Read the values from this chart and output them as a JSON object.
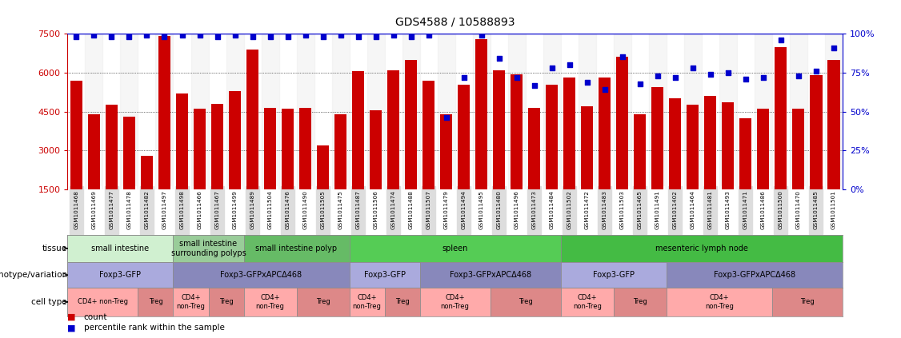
{
  "title": "GDS4588 / 10588893",
  "samples": [
    "GSM1011468",
    "GSM1011469",
    "GSM1011477",
    "GSM1011478",
    "GSM1011482",
    "GSM1011497",
    "GSM1011498",
    "GSM1011466",
    "GSM1011467",
    "GSM1011499",
    "GSM1011489",
    "GSM1011504",
    "GSM1011476",
    "GSM1011490",
    "GSM1011505",
    "GSM1011475",
    "GSM1011487",
    "GSM1011506",
    "GSM1011474",
    "GSM1011488",
    "GSM1011507",
    "GSM1011479",
    "GSM1011494",
    "GSM1011495",
    "GSM1011480",
    "GSM1011496",
    "GSM1011473",
    "GSM1011484",
    "GSM1011502",
    "GSM1011472",
    "GSM1011483",
    "GSM1011503",
    "GSM1011465",
    "GSM1011491",
    "GSM1011402",
    "GSM1011464",
    "GSM1011481",
    "GSM1011493",
    "GSM1011471",
    "GSM1011486",
    "GSM1011500",
    "GSM1011470",
    "GSM1011485",
    "GSM1011501"
  ],
  "counts": [
    5700,
    4400,
    4750,
    4300,
    2780,
    7430,
    5200,
    4600,
    4800,
    5300,
    6900,
    4650,
    4600,
    4650,
    3200,
    4400,
    6050,
    4550,
    6100,
    6500,
    5700,
    4400,
    5550,
    7300,
    6100,
    5950,
    4650,
    5550,
    5800,
    4700,
    5800,
    6600,
    4400,
    5450,
    5000,
    4750,
    5100,
    4850,
    4250,
    4600,
    7000,
    4600,
    5900,
    6500
  ],
  "percentile_vals": [
    98,
    99,
    98,
    98,
    99,
    98,
    99,
    99,
    98,
    99,
    98,
    98,
    98,
    99,
    98,
    99,
    98,
    98,
    99,
    98,
    99,
    46,
    72,
    99,
    84,
    72,
    67,
    78,
    80,
    69,
    64,
    85,
    68,
    73,
    72,
    78,
    74,
    75,
    71,
    72,
    96,
    73,
    76,
    91
  ],
  "bar_color": "#cc0000",
  "percentile_color": "#0000cc",
  "ymin": 1500,
  "ymax": 7500,
  "yticks_left": [
    1500,
    3000,
    4500,
    6000,
    7500
  ],
  "yticks_right": [
    0,
    25,
    50,
    75,
    100
  ],
  "grid_values": [
    3000,
    4500,
    6000
  ],
  "tissue_groups": [
    {
      "label": "small intestine",
      "start": 0,
      "end": 6,
      "color": "#d0f0d0"
    },
    {
      "label": "small intestine\nsurrounding polyps",
      "start": 6,
      "end": 10,
      "color": "#99cc99"
    },
    {
      "label": "small intestine polyp",
      "start": 10,
      "end": 16,
      "color": "#66bb66"
    },
    {
      "label": "spleen",
      "start": 16,
      "end": 28,
      "color": "#55cc55"
    },
    {
      "label": "mesenteric lymph node",
      "start": 28,
      "end": 44,
      "color": "#44bb44"
    }
  ],
  "genotype_groups": [
    {
      "label": "Foxp3-GFP",
      "start": 0,
      "end": 6,
      "color": "#aaaadd"
    },
    {
      "label": "Foxp3-GFPxAPCΔ468",
      "start": 6,
      "end": 16,
      "color": "#8888bb"
    },
    {
      "label": "Foxp3-GFP",
      "start": 16,
      "end": 20,
      "color": "#aaaadd"
    },
    {
      "label": "Foxp3-GFPxAPCΔ468",
      "start": 20,
      "end": 28,
      "color": "#8888bb"
    },
    {
      "label": "Foxp3-GFP",
      "start": 28,
      "end": 34,
      "color": "#aaaadd"
    },
    {
      "label": "Foxp3-GFPxAPCΔ468",
      "start": 34,
      "end": 44,
      "color": "#8888bb"
    }
  ],
  "celltype_groups": [
    {
      "label": "CD4+ non-Treg",
      "start": 0,
      "end": 4,
      "color": "#ffaaaa"
    },
    {
      "label": "Treg",
      "start": 4,
      "end": 6,
      "color": "#dd8888"
    },
    {
      "label": "CD4+\nnon-Treg",
      "start": 6,
      "end": 8,
      "color": "#ffaaaa"
    },
    {
      "label": "Treg",
      "start": 8,
      "end": 10,
      "color": "#dd8888"
    },
    {
      "label": "CD4+\nnon-Treg",
      "start": 10,
      "end": 13,
      "color": "#ffaaaa"
    },
    {
      "label": "Treg",
      "start": 13,
      "end": 16,
      "color": "#dd8888"
    },
    {
      "label": "CD4+\nnon-Treg",
      "start": 16,
      "end": 18,
      "color": "#ffaaaa"
    },
    {
      "label": "Treg",
      "start": 18,
      "end": 20,
      "color": "#dd8888"
    },
    {
      "label": "CD4+\nnon-Treg",
      "start": 20,
      "end": 24,
      "color": "#ffaaaa"
    },
    {
      "label": "Treg",
      "start": 24,
      "end": 28,
      "color": "#dd8888"
    },
    {
      "label": "CD4+\nnon-Treg",
      "start": 28,
      "end": 31,
      "color": "#ffaaaa"
    },
    {
      "label": "Treg",
      "start": 31,
      "end": 34,
      "color": "#dd8888"
    },
    {
      "label": "CD4+\nnon-Treg",
      "start": 34,
      "end": 40,
      "color": "#ffaaaa"
    },
    {
      "label": "Treg",
      "start": 40,
      "end": 44,
      "color": "#dd8888"
    }
  ]
}
